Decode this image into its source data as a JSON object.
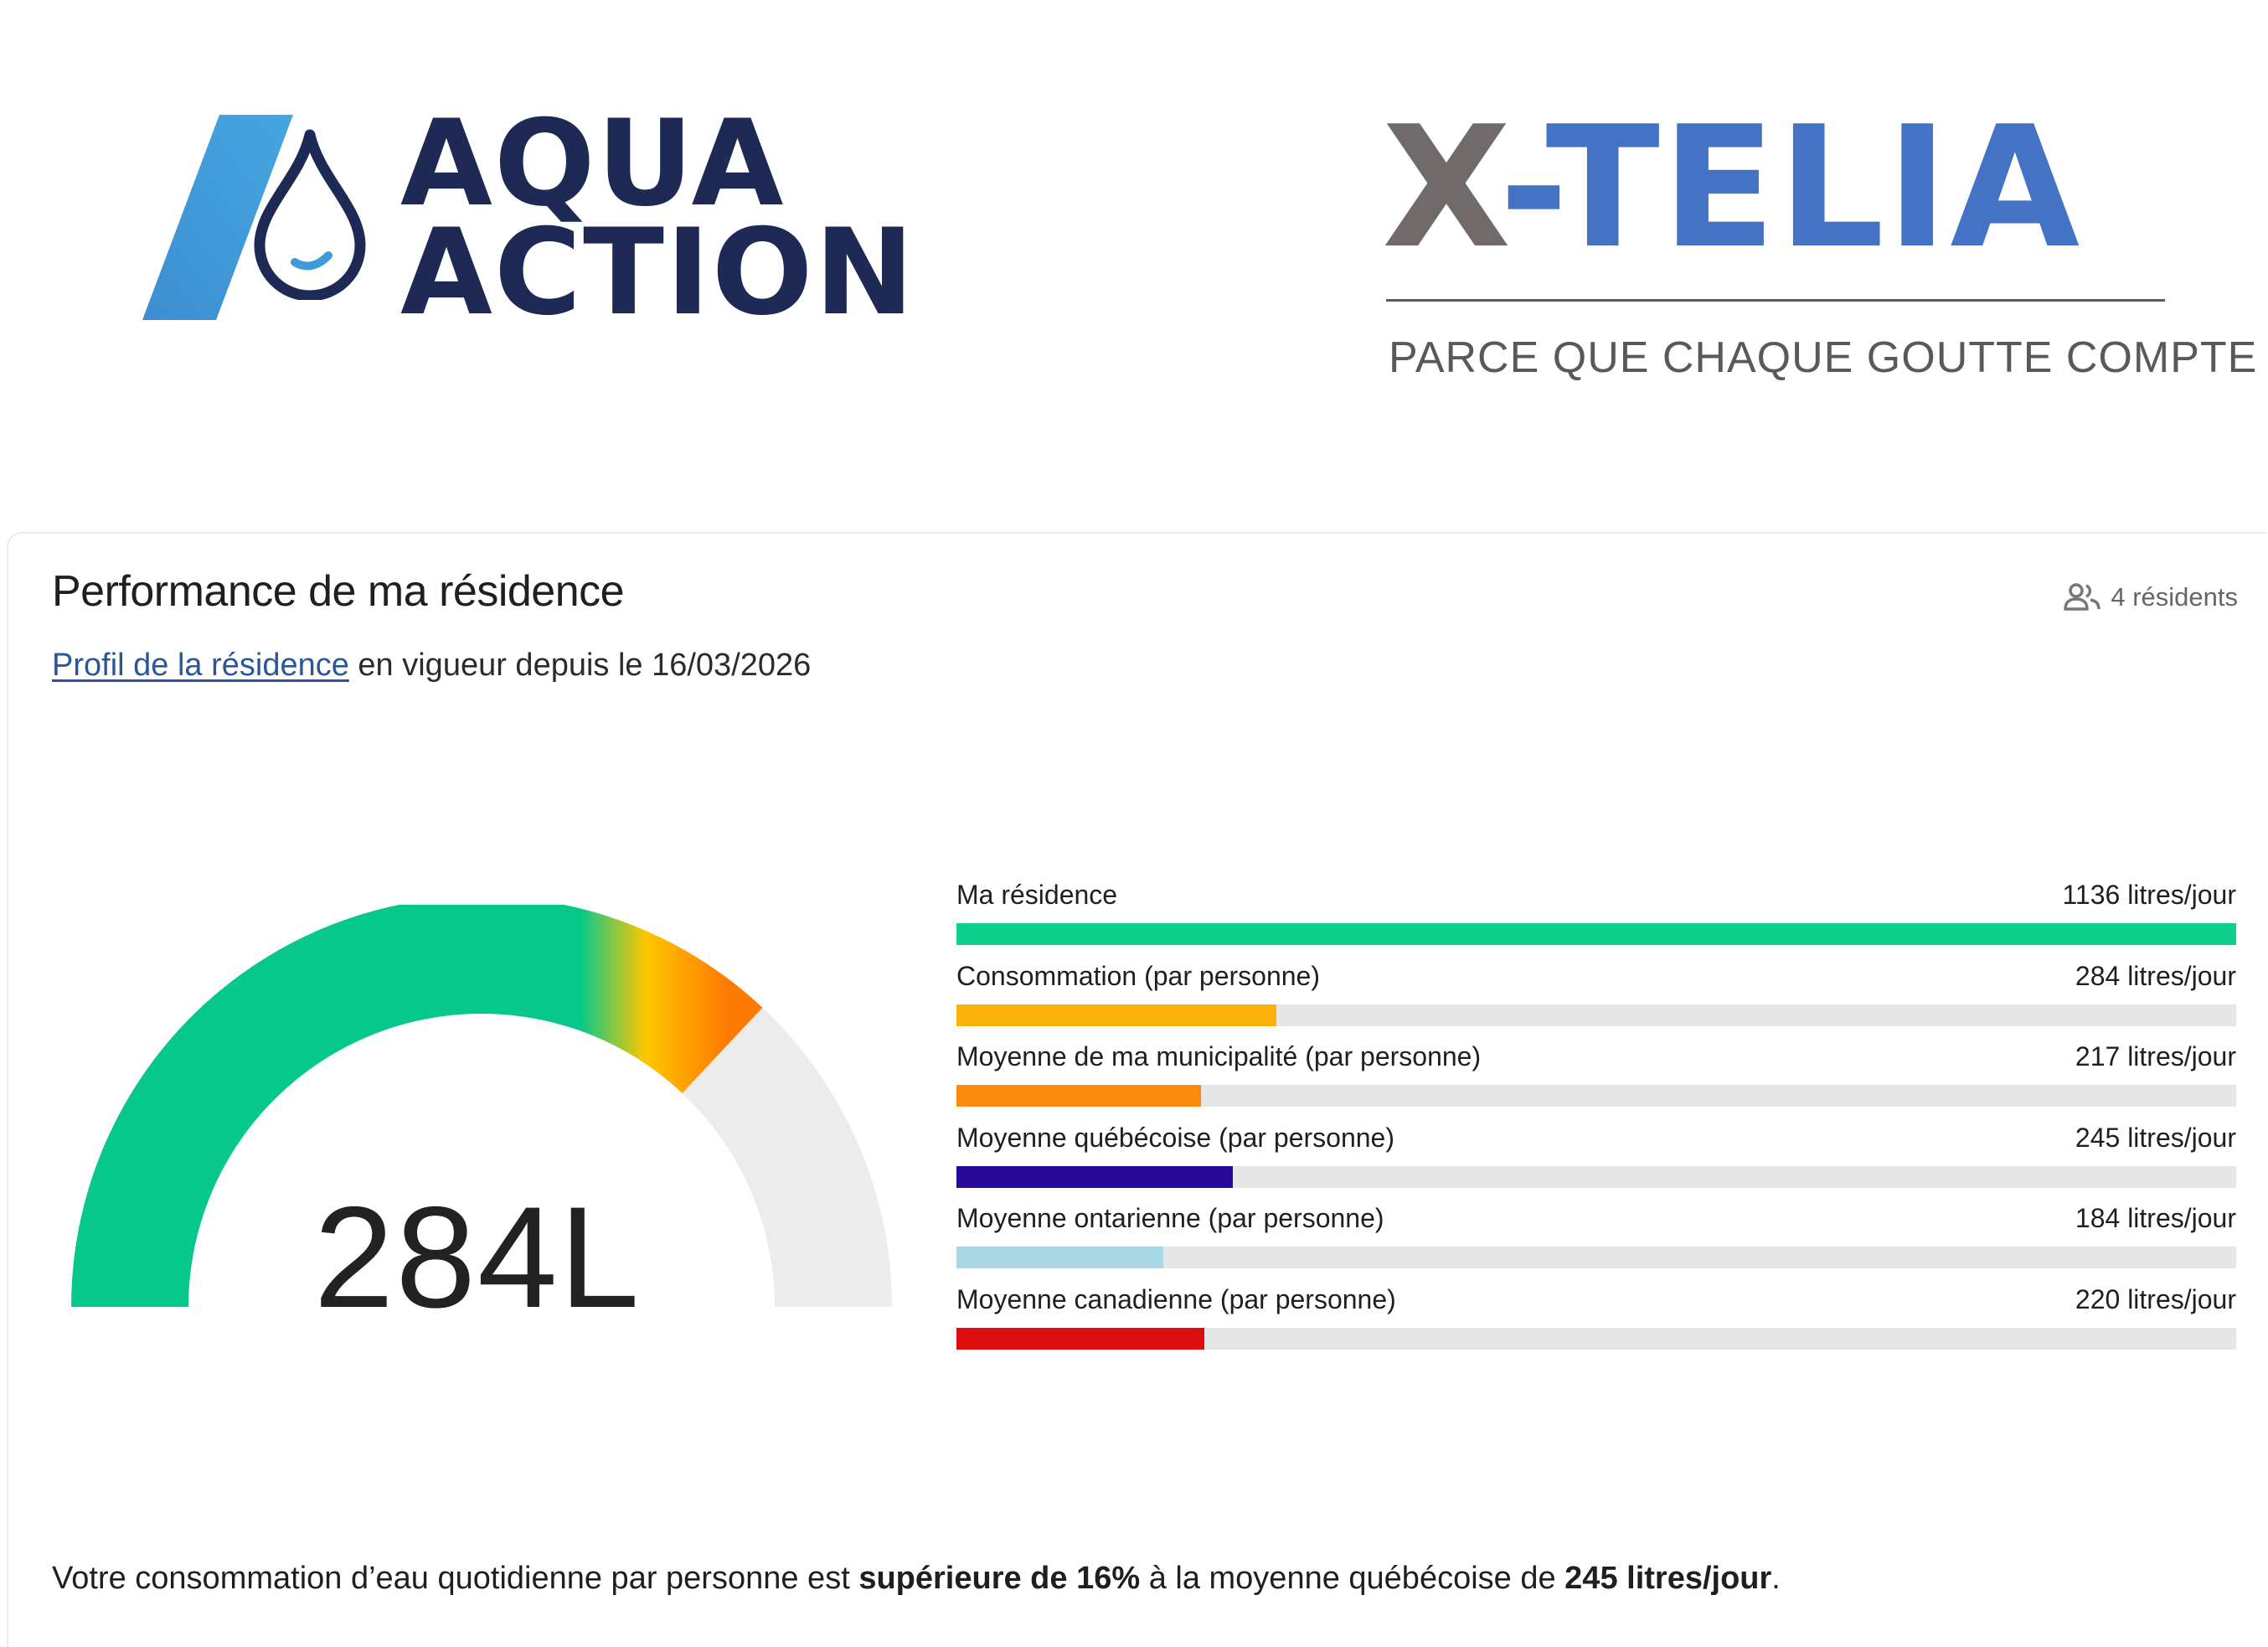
{
  "logos": {
    "aqua_action": {
      "line1": "AQUA",
      "line2": "ACTION"
    },
    "xtelia": {
      "x": "X",
      "rest": "-TELIA",
      "tagline": "PARCE QUE CHAQUE GOUTTE COMPTE"
    }
  },
  "card": {
    "title": "Performance de ma résidence",
    "residents": {
      "icon": "people-icon",
      "label": "4 résidents"
    },
    "profile": {
      "link_text": "Profil de la résidence",
      "suffix": " en vigueur depuis le 16/03/2026"
    }
  },
  "gauge": {
    "value_label": "284L",
    "value": 284,
    "level_fraction": 0.74,
    "colors": {
      "good": "#06c88a",
      "warn": "#ffc600",
      "bad": "#ff7a00",
      "track": "#ececec"
    }
  },
  "comparison": {
    "unit": "litres/jour",
    "rows": [
      {
        "label": "Ma résidence",
        "value_label": "1136 litres/jour",
        "value": 1136,
        "color": "#0dd08c"
      },
      {
        "label": "Consommation (par personne)",
        "value_label": "284 litres/jour",
        "value": 284,
        "color": "#fbb30c"
      },
      {
        "label": "Moyenne de ma municipalité (par personne)",
        "value_label": "217 litres/jour",
        "value": 217,
        "color": "#fa8a0b"
      },
      {
        "label": "Moyenne québécoise (par personne)",
        "value_label": "245 litres/jour",
        "value": 245,
        "color": "#2a0a99"
      },
      {
        "label": "Moyenne ontarienne (par personne)",
        "value_label": "184 litres/jour",
        "value": 184,
        "color": "#a9d8e5"
      },
      {
        "label": "Moyenne canadienne (par personne)",
        "value_label": "220 litres/jour",
        "value": 220,
        "color": "#dd0e0e"
      }
    ]
  },
  "summary": {
    "part1": "Votre consommation d’eau quotidienne par personne est ",
    "bold1": "supérieure de 16%",
    "part2": " à la moyenne québécoise de ",
    "bold2": "245 litres/jour",
    "part3": "."
  }
}
